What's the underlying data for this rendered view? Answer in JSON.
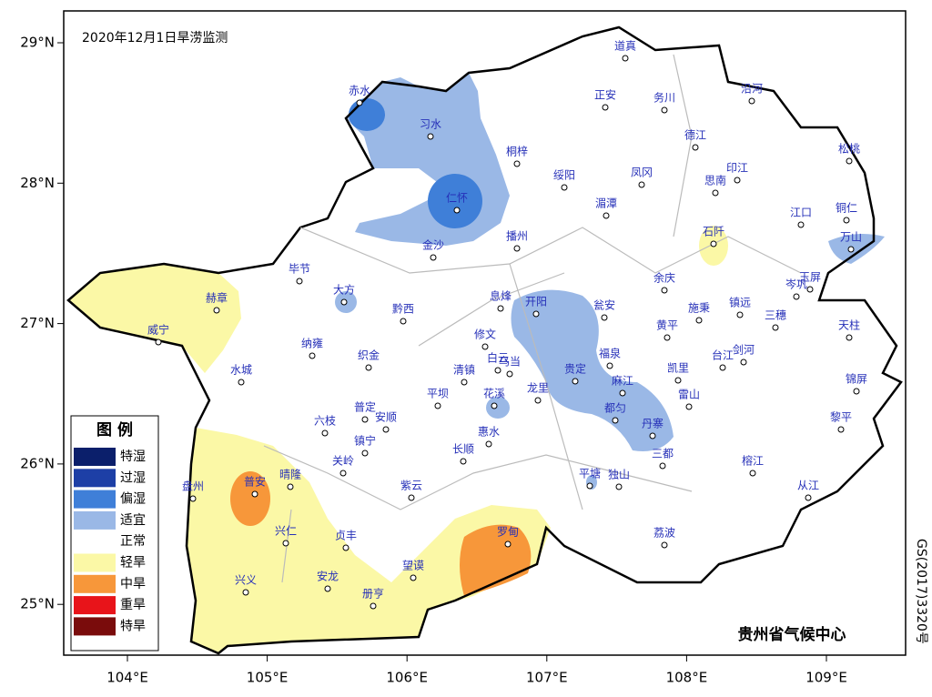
{
  "title": "2020年12月1日旱涝监测",
  "footer": "贵州省气候中心",
  "side_note": "GS(2017)3320号",
  "axes": {
    "xticks": [
      {
        "value": 104,
        "label": "104°E"
      },
      {
        "value": 105,
        "label": "105°E"
      },
      {
        "value": 106,
        "label": "106°E"
      },
      {
        "value": 107,
        "label": "107°E"
      },
      {
        "value": 108,
        "label": "108°E"
      },
      {
        "value": 109,
        "label": "109°E"
      }
    ],
    "yticks": [
      {
        "value": 25,
        "label": "25°N"
      },
      {
        "value": 26,
        "label": "26°N"
      },
      {
        "value": 27,
        "label": "27°N"
      },
      {
        "value": 28,
        "label": "28°N"
      },
      {
        "value": 29,
        "label": "29°N"
      }
    ]
  },
  "legend": {
    "title": "图 例",
    "items": [
      {
        "name": "特湿",
        "color": "#0b1f6b"
      },
      {
        "name": "过湿",
        "color": "#1d3fa6"
      },
      {
        "name": "偏湿",
        "color": "#3f7fd8"
      },
      {
        "name": "适宜",
        "color": "#9ab8e6"
      },
      {
        "name": "正常",
        "color": "#ffffff"
      },
      {
        "name": "轻旱",
        "color": "#fbf8a6"
      },
      {
        "name": "中旱",
        "color": "#f7973a"
      },
      {
        "name": "重旱",
        "color": "#e8141a"
      },
      {
        "name": "特旱",
        "color": "#7a0c0c"
      }
    ]
  },
  "cities": [
    "道真",
    "赤水",
    "习水",
    "桐梓",
    "正安",
    "务川",
    "沿河",
    "德江",
    "绥阳",
    "凤冈",
    "印江",
    "思南",
    "松桃",
    "仁怀",
    "湄潭",
    "石阡",
    "江口",
    "铜仁",
    "万山",
    "金沙",
    "播州",
    "毕节",
    "大方",
    "赫章",
    "黔西",
    "息烽",
    "开阳",
    "瓮安",
    "余庆",
    "施秉",
    "镇远",
    "岑巩",
    "玉屏",
    "三穗",
    "黄平",
    "天柱",
    "威宁",
    "纳雍",
    "织金",
    "修文",
    "白云",
    "乌当",
    "清镇",
    "贵定",
    "福泉",
    "凯里",
    "台江",
    "剑河",
    "锦屏",
    "水城",
    "平坝",
    "花溪",
    "龙里",
    "麻江",
    "雷山",
    "都匀",
    "丹寨",
    "黎平",
    "六枝",
    "普定",
    "安顺",
    "惠水",
    "长顺",
    "镇宁",
    "关岭",
    "三都",
    "榕江",
    "从江",
    "紫云",
    "平塘",
    "独山",
    "晴隆",
    "普安",
    "盘州",
    "兴仁",
    "贞丰",
    "罗甸",
    "荔波",
    "望谟",
    "安龙",
    "兴义",
    "册亨"
  ]
}
